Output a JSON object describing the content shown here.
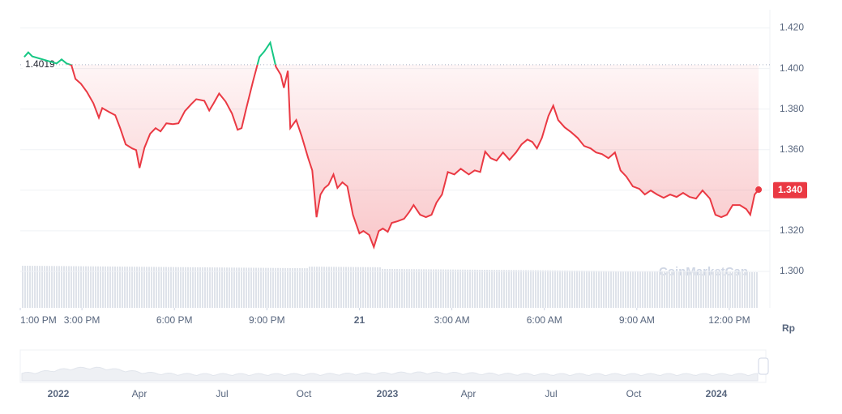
{
  "chart_data": {
    "type": "line",
    "x": [
      13.13,
      13.26,
      13.39,
      14.18,
      14.34,
      14.5,
      14.66,
      14.79,
      14.97,
      15.16,
      15.37,
      15.55,
      15.66,
      15.89,
      16.08,
      16.24,
      16.42,
      16.63,
      16.76,
      16.87,
      17.03,
      17.21,
      17.39,
      17.55,
      17.74,
      17.95,
      18.13,
      18.34,
      18.55,
      18.71,
      18.97,
      19.13,
      19.26,
      19.45,
      19.66,
      19.87,
      20.05,
      20.18,
      20.32,
      20.55,
      20.76,
      20.92,
      21.11,
      21.29,
      21.45,
      21.55,
      21.68,
      21.76,
      21.95,
      22.13,
      22.34,
      22.47,
      22.61,
      22.74,
      22.87,
      23,
      23.16,
      23.29,
      23.45,
      23.61,
      23.79,
      24,
      24.13,
      24.32,
      24.47,
      24.63,
      24.76,
      24.92,
      25.05,
      25.24,
      25.45,
      25.61,
      25.76,
      25.97,
      26.16,
      26.34,
      26.5,
      26.68,
      26.87,
      27.08,
      27.29,
      27.55,
      27.74,
      27.92,
      28.08,
      28.26,
      28.45,
      28.66,
      28.87,
      29.08,
      29.26,
      29.45,
      29.61,
      29.76,
      29.92,
      30.13,
      30.29,
      30.45,
      30.66,
      30.87,
      31.08,
      31.29,
      31.5,
      31.68,
      31.87,
      32.08,
      32.29,
      32.47,
      32.66,
      32.87,
      33.08,
      33.26,
      33.45,
      33.66,
      33.87,
      34.08,
      34.29,
      34.5,
      34.71,
      34.92,
      35.13,
      35.37,
      35.55,
      35.74,
      35.92,
      36.11,
      36.34,
      36.55,
      36.68,
      36.82,
      36.95
    ],
    "values": [
      1.4057,
      1.408,
      1.406,
      1.4025,
      1.4045,
      1.4025,
      1.4017,
      1.3949,
      1.3925,
      1.3885,
      1.3829,
      1.3758,
      1.3805,
      1.3785,
      1.377,
      1.3706,
      1.3626,
      1.3606,
      1.3598,
      1.351,
      1.361,
      1.3678,
      1.3706,
      1.369,
      1.373,
      1.3726,
      1.373,
      1.379,
      1.3825,
      1.3849,
      1.3841,
      1.3793,
      1.3825,
      1.3877,
      1.3837,
      1.3778,
      1.3698,
      1.3706,
      1.3797,
      1.3937,
      1.4057,
      1.4085,
      1.4128,
      1.4009,
      1.3969,
      1.3905,
      1.3989,
      1.3706,
      1.3746,
      1.3666,
      1.3558,
      1.3498,
      1.3267,
      1.3379,
      1.3411,
      1.3427,
      1.3478,
      1.3411,
      1.3439,
      1.3419,
      1.3279,
      1.3187,
      1.3199,
      1.3179,
      1.312,
      1.3199,
      1.3211,
      1.3195,
      1.3239,
      1.3247,
      1.3259,
      1.3291,
      1.3327,
      1.3279,
      1.3267,
      1.3279,
      1.3339,
      1.3379,
      1.349,
      1.3478,
      1.3506,
      1.3478,
      1.3498,
      1.349,
      1.359,
      1.3558,
      1.3546,
      1.3586,
      1.355,
      1.3586,
      1.3626,
      1.365,
      1.3638,
      1.3606,
      1.3658,
      1.3766,
      1.3817,
      1.3746,
      1.371,
      1.3686,
      1.3658,
      1.3618,
      1.3606,
      1.3586,
      1.3578,
      1.3558,
      1.3586,
      1.3498,
      1.3467,
      1.3419,
      1.3407,
      1.3379,
      1.3399,
      1.3379,
      1.3363,
      1.3379,
      1.3367,
      1.3387,
      1.3367,
      1.3359,
      1.3399,
      1.3359,
      1.3279,
      1.3267,
      1.3279,
      1.3327,
      1.3327,
      1.3307,
      1.3279,
      1.3379,
      1.3403
    ],
    "xlim": [
      13,
      37
    ],
    "xticks": [
      {
        "value": 13,
        "label": "1:00 PM"
      },
      {
        "value": 15,
        "label": "3:00 PM"
      },
      {
        "value": 18,
        "label": "6:00 PM"
      },
      {
        "value": 21,
        "label": "9:00 PM"
      },
      {
        "value": 24,
        "label": "21"
      },
      {
        "value": 27,
        "label": "3:00 AM"
      },
      {
        "value": 30,
        "label": "6:00 AM"
      },
      {
        "value": 33,
        "label": "9:00 AM"
      },
      {
        "value": 36,
        "label": "12:00 PM"
      }
    ],
    "ylim": [
      1.282,
      1.429
    ],
    "yticks": [
      {
        "value": 1.42,
        "label": "1.420"
      },
      {
        "value": 1.4,
        "label": "1.400"
      },
      {
        "value": 1.38,
        "label": "1.380"
      },
      {
        "value": 1.36,
        "label": "1.360"
      },
      {
        "value": 1.34,
        "label": "1.340"
      },
      {
        "value": 1.32,
        "label": "1.320"
      },
      {
        "value": 1.3,
        "label": "1.300"
      }
    ],
    "baseline": 1.4019,
    "last_price": {
      "value": 1.34,
      "label": "1.340"
    },
    "y_unit": "Rp",
    "watermark": "CoinMarketCap",
    "color_up": "#16c784",
    "color_down": "#ea3943",
    "grid": true,
    "navigator_labels": [
      "2022",
      "Apr",
      "Jul",
      "Oct",
      "2023",
      "Apr",
      "Jul",
      "Oct",
      "2024"
    ]
  }
}
